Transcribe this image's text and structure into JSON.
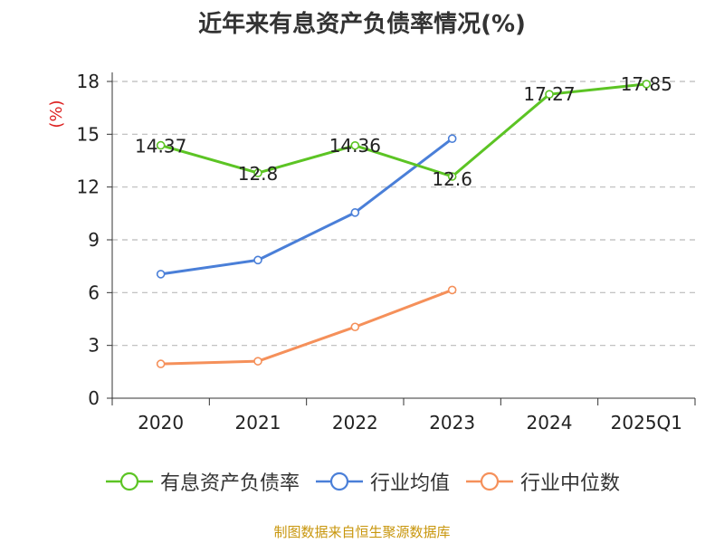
{
  "title": "近年来有息资产负债率情况(%)",
  "footer": "制图数据来自恒生聚源数据库",
  "chart_data": {
    "type": "line",
    "categories": [
      "2020",
      "2021",
      "2022",
      "2023",
      "2024",
      "2025Q1"
    ],
    "ylabel": "(%)",
    "ylim": [
      0,
      18
    ],
    "yticks": [
      0,
      3,
      6,
      9,
      12,
      15,
      18
    ],
    "grid": true,
    "legend_position": "bottom",
    "series": [
      {
        "name": "有息资产负债率",
        "color": "#5cc424",
        "values": [
          14.37,
          12.8,
          14.36,
          12.6,
          17.27,
          17.85
        ],
        "labels": [
          "14.37",
          "12.8",
          "14.36",
          "12.6",
          "17.27",
          "17.85"
        ]
      },
      {
        "name": "行业均值",
        "color": "#4a7fd8",
        "values": [
          7.05,
          7.85,
          10.55,
          14.75,
          null,
          null
        ]
      },
      {
        "name": "行业中位数",
        "color": "#f5905a",
        "values": [
          1.95,
          2.1,
          4.05,
          6.15,
          null,
          null
        ]
      }
    ]
  }
}
